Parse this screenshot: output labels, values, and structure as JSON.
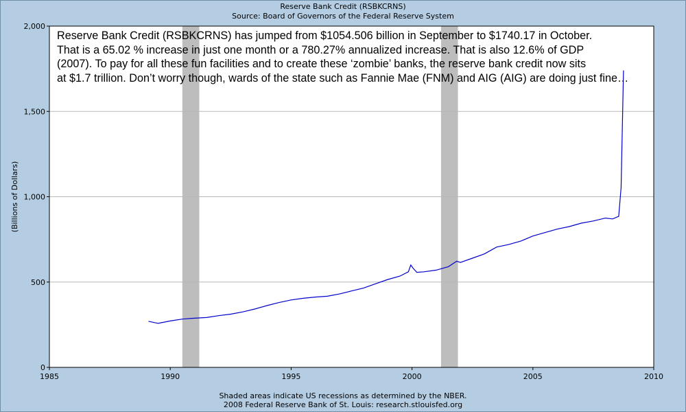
{
  "header": {
    "title": "Reserve Bank Credit (RSBKCRNS)",
    "source": "Source: Board of Governors of the Federal Reserve System"
  },
  "annotation": {
    "lines": [
      "Reserve Bank Credit (RSBKCRNS) has jumped from $1054.506 billion in September to $1740.17 in October.",
      "That is a 65.02 % increase in just one month or a 780.27% annualized increase. That is also 12.6% of GDP",
      "(2007). To pay for all these fun facilities and to create these ‘zombie’ banks, the reserve bank credit now sits",
      "at $1.7 trillion. Don’t worry though, wards of the state such as Fannie Mae (FNM) and AIG (AIG) are doing just fine…"
    ]
  },
  "footer": {
    "note": "Shaded areas indicate US recessions as determined by the NBER.",
    "credit": "2008 Federal Reserve Bank of St. Louis: research.stlouisfed.org"
  },
  "chart_data": {
    "type": "line",
    "title": "Reserve Bank Credit (RSBKCRNS)",
    "ylabel": "(Billions of Dollars)",
    "xlabel": "",
    "xlim": [
      1985,
      2010
    ],
    "ylim": [
      0,
      2000
    ],
    "x_ticks": [
      1985,
      1990,
      1995,
      2000,
      2005,
      2010
    ],
    "x_tick_labels": [
      "1985",
      "1990",
      "1995",
      "2000",
      "2005",
      "2010"
    ],
    "y_ticks": [
      0,
      500,
      1000,
      1500,
      2000
    ],
    "y_tick_labels": [
      "0",
      "500",
      "1,000",
      "1,500",
      "2,000"
    ],
    "grid": true,
    "line_color": "#0000cc",
    "recession_color": "#bdbdbd",
    "recessions": [
      [
        1990.5,
        1991.2
      ],
      [
        2001.2,
        2001.9
      ]
    ],
    "series": [
      {
        "x": [
          1989.1,
          1989.5,
          1990.0,
          1990.5,
          1991.0,
          1991.5,
          1992.0,
          1992.5,
          1993.0,
          1993.5,
          1994.0,
          1994.5,
          1995.0,
          1995.5,
          1996.0,
          1996.5,
          1997.0,
          1997.5,
          1998.0,
          1998.5,
          1999.0,
          1999.5,
          1999.85,
          1999.95,
          2000.05,
          2000.2,
          2000.5,
          2001.0,
          2001.5,
          2001.85,
          2002.0,
          2002.5,
          2003.0,
          2003.5,
          2004.0,
          2004.5,
          2005.0,
          2005.5,
          2006.0,
          2006.5,
          2007.0,
          2007.5,
          2008.0,
          2008.3,
          2008.55,
          2008.65,
          2008.75
        ],
        "y": [
          270,
          258,
          272,
          283,
          288,
          292,
          303,
          312,
          325,
          342,
          362,
          380,
          395,
          405,
          412,
          417,
          430,
          448,
          465,
          490,
          515,
          535,
          560,
          600,
          580,
          557,
          560,
          570,
          590,
          622,
          615,
          640,
          665,
          705,
          720,
          740,
          770,
          790,
          810,
          825,
          845,
          858,
          875,
          870,
          885,
          1054.506,
          1740.17
        ]
      }
    ]
  }
}
